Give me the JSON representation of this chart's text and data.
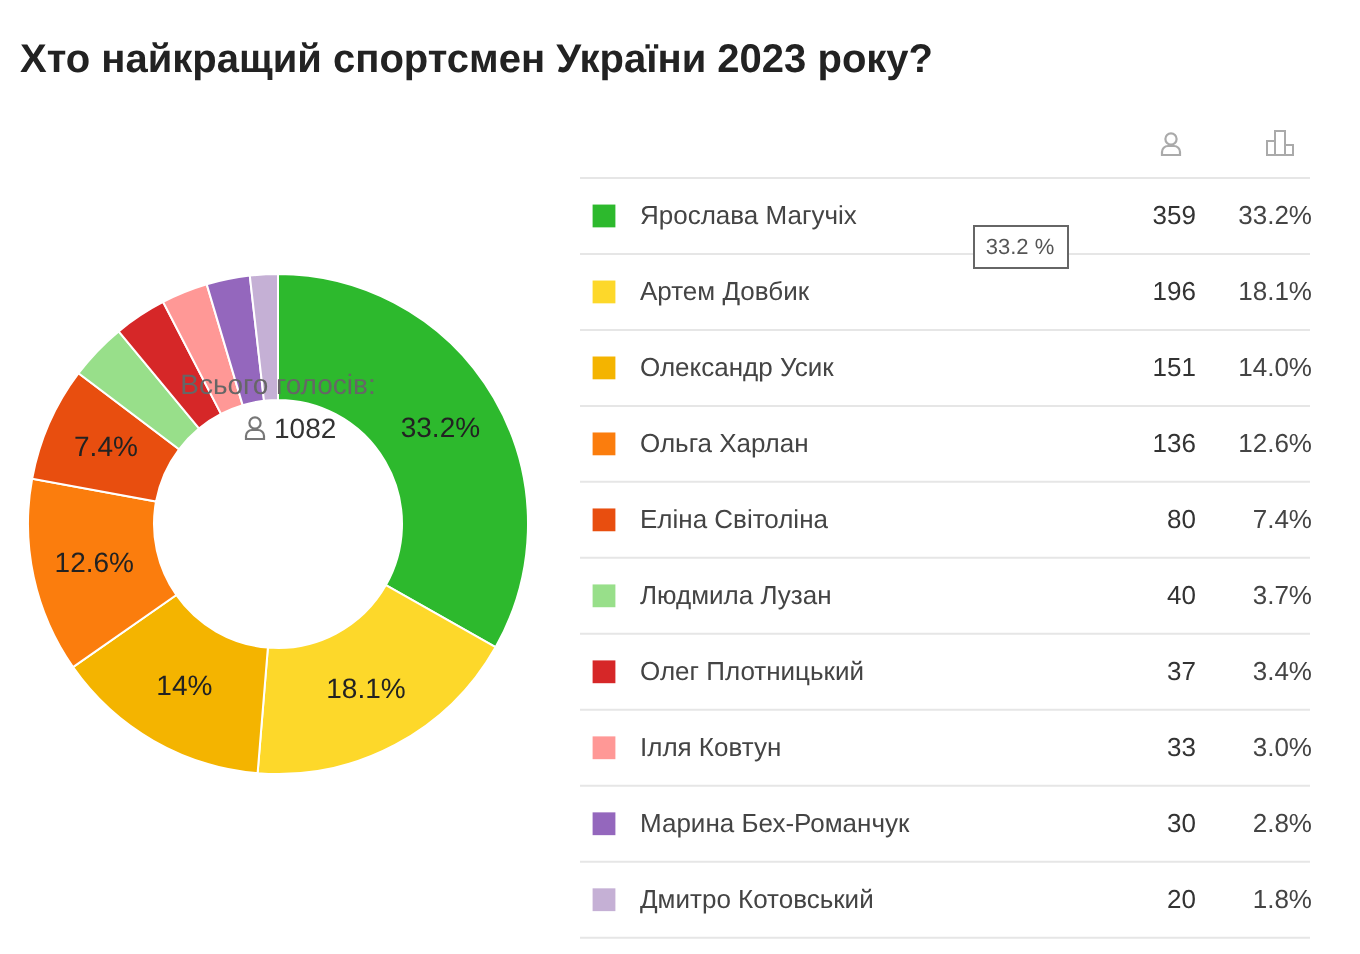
{
  "chart_data": {
    "type": "donut",
    "title": "Хто найкращий спортсмен України 2023 року?",
    "categories": [
      "Ярослава Магучіх",
      "Артем Довбик",
      "Олександр Усик",
      "Ольга Харлан",
      "Еліна Світоліна",
      "Людмила Лузан",
      "Олег Плотницький",
      "Ілля Ковтун",
      "Марина Бех-Романчук",
      "Дмитро Котовський"
    ],
    "values": [
      33.2,
      18.1,
      14.0,
      12.6,
      7.4,
      3.7,
      3.4,
      3.0,
      2.8,
      1.8
    ],
    "colors": [
      "#2db92d",
      "#fdd82a",
      "#f4b400",
      "#fb7d0d",
      "#e84e0f",
      "#98df8a",
      "#d62728",
      "#ff9896",
      "#9467bd",
      "#c5b0d5"
    ],
    "value_labels": [
      "33.2%",
      "18.1%",
      "14%",
      "12.6%",
      "7.4%",
      null,
      null,
      null,
      null,
      null
    ],
    "legend": "right",
    "annotations": [
      "Всього голосів:",
      "1082",
      "33.2 %",
      {
        "text": "359",
        "x": "Ярослава Магучіх"
      },
      {
        "text": "196",
        "x": "Артем Довбик"
      },
      {
        "text": "151",
        "x": "Олександр Усик"
      },
      {
        "text": "136",
        "x": "Ольга Харлан"
      },
      {
        "text": "80",
        "x": "Еліна Світоліна"
      },
      {
        "text": "40",
        "x": "Людмила Лузан"
      },
      {
        "text": "37",
        "x": "Олег Плотницький"
      },
      {
        "text": "33",
        "x": "Ілля Ковтун"
      },
      {
        "text": "30",
        "x": "Марина Бех-Романчук"
      },
      {
        "text": "20",
        "x": "Дмитро Котовський"
      },
      {
        "text": "33.2%",
        "x": "Ярослава Магучіх"
      },
      {
        "text": "18.1%",
        "x": "Артем Довбик"
      },
      {
        "text": "14.0%",
        "x": "Олександр Усик"
      },
      {
        "text": "12.6%",
        "x": "Ольга Харлан"
      },
      {
        "text": "7.4%",
        "x": "Еліна Світоліна"
      },
      {
        "text": "3.7%",
        "x": "Людмила Лузан"
      },
      {
        "text": "3.4%",
        "x": "Олег Плотницький"
      },
      {
        "text": "3.0%",
        "x": "Ілля Ковтун"
      },
      {
        "text": "2.8%",
        "x": "Марина Бех-Романчук"
      },
      {
        "text": "1.8%",
        "x": "Дмитро Котовський"
      }
    ]
  }
}
